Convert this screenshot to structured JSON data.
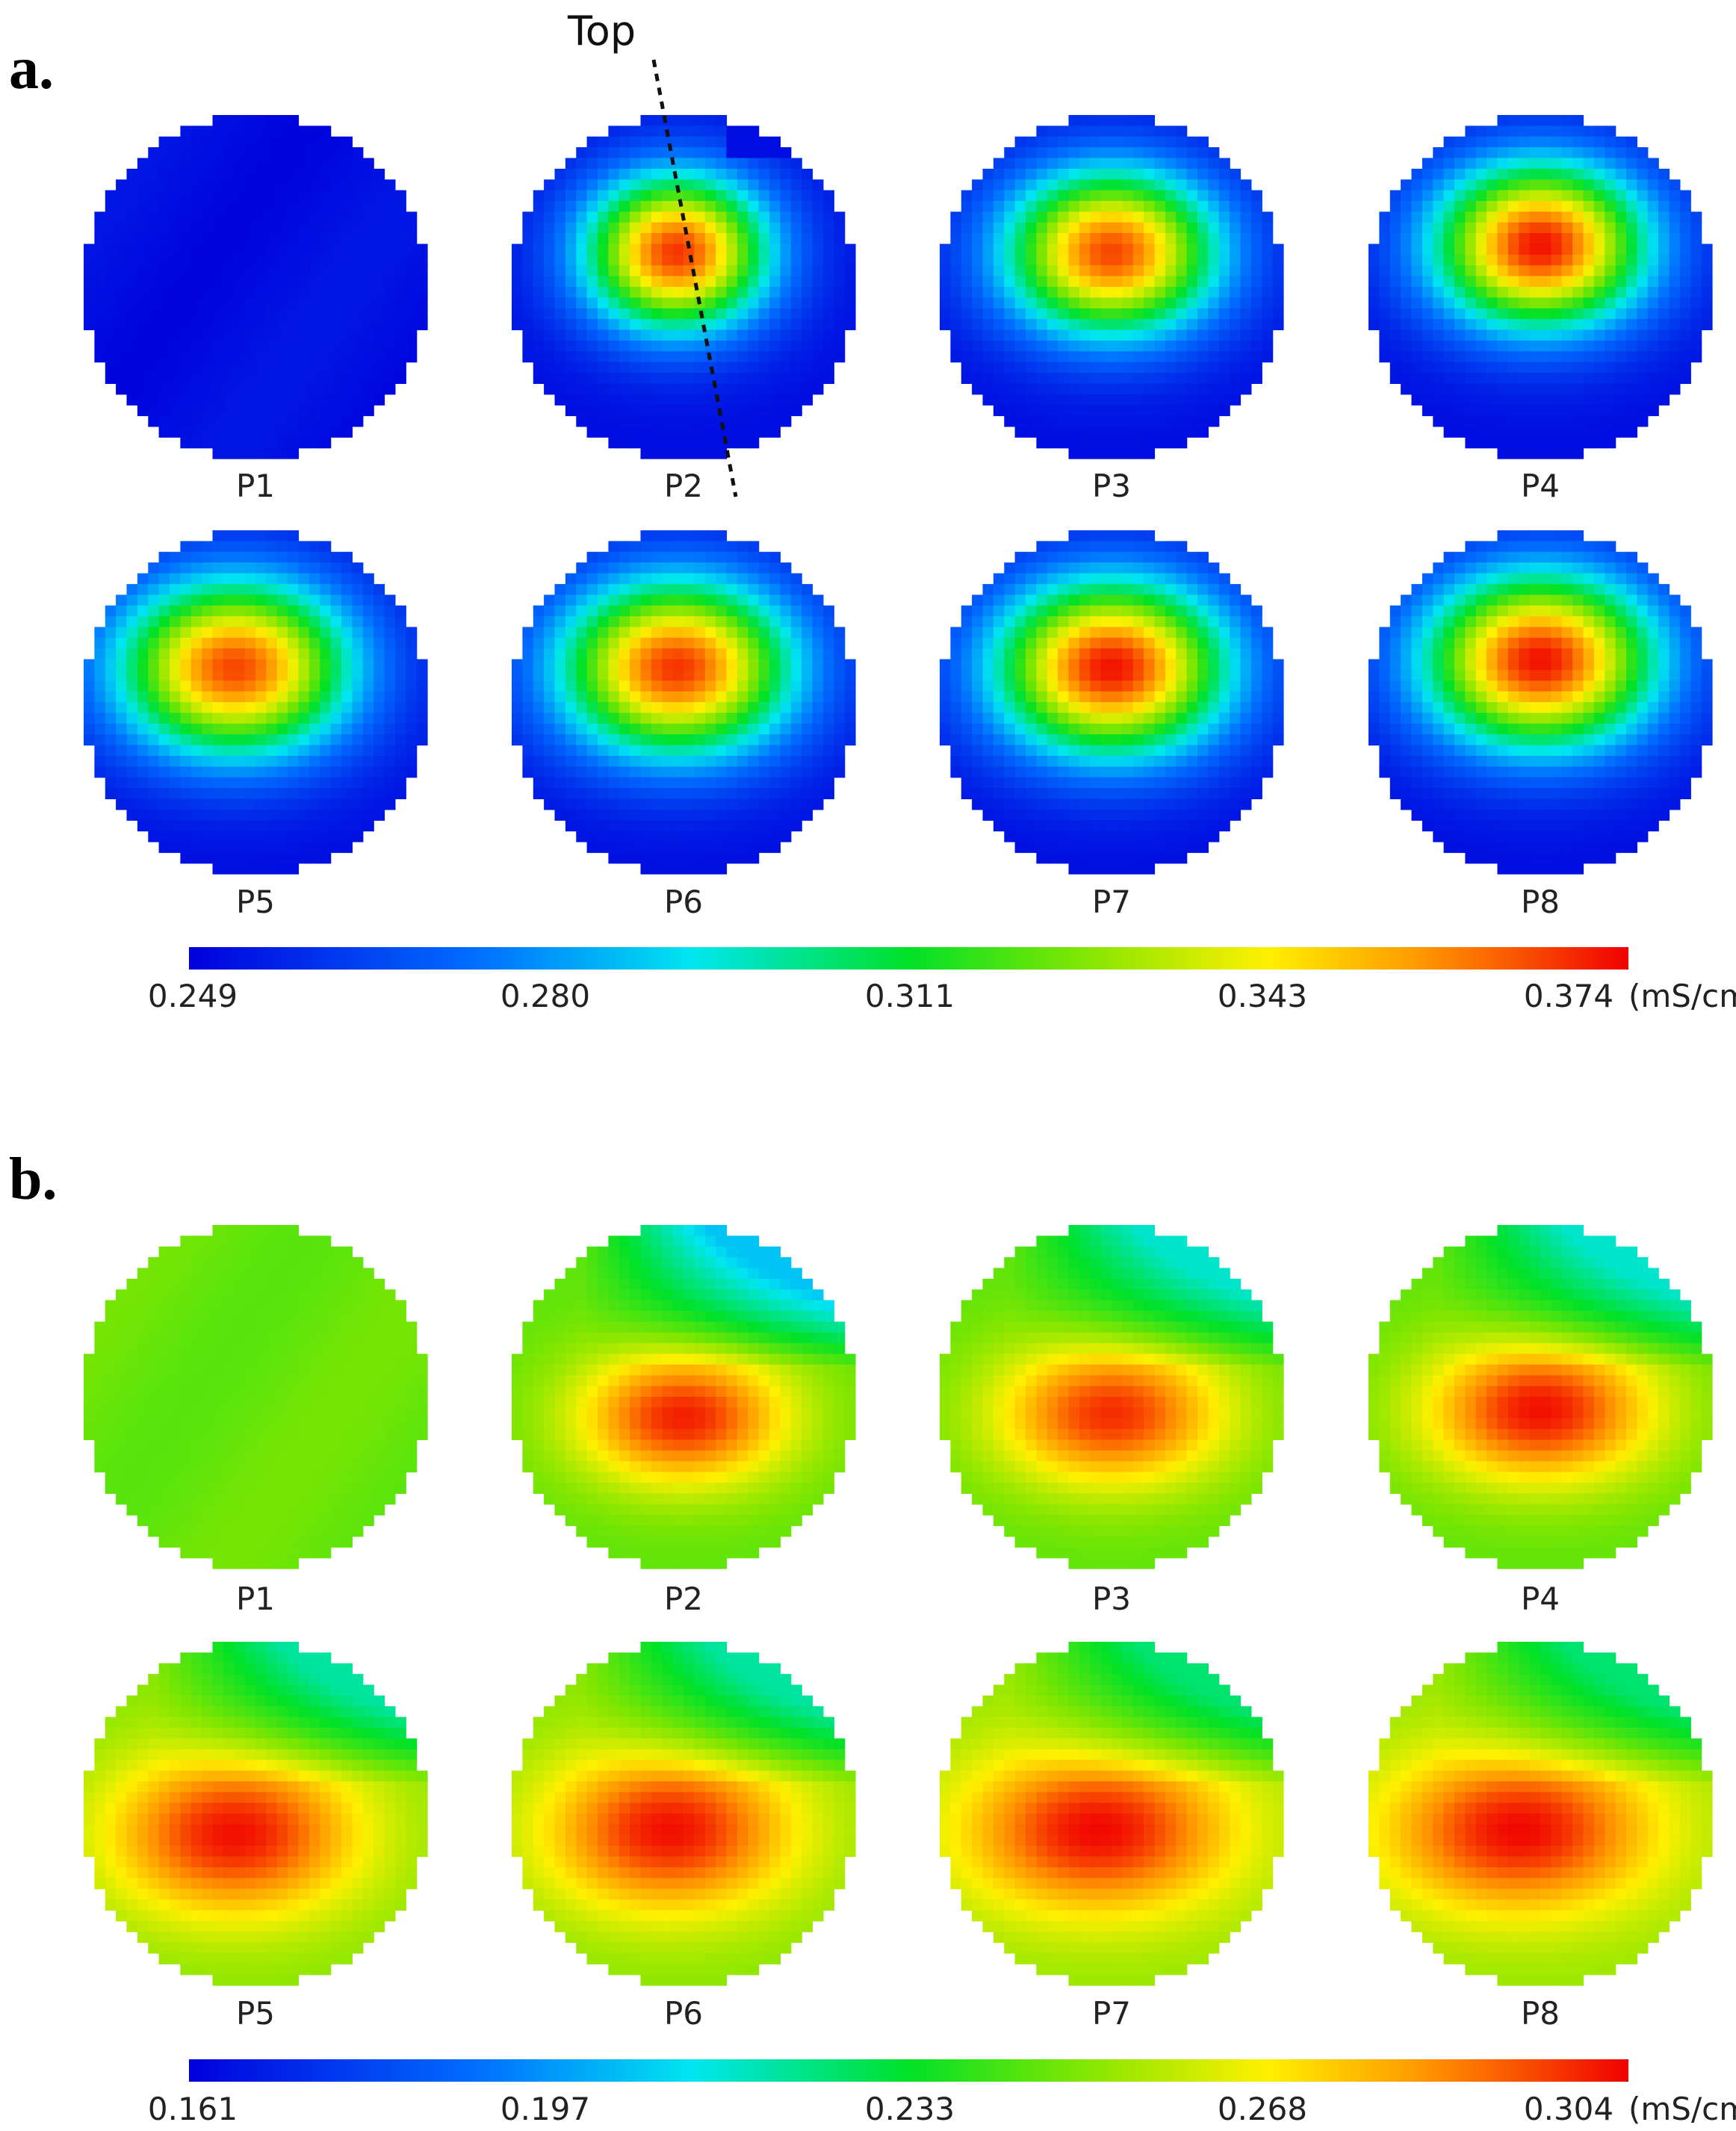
{
  "chart_data": [
    {
      "type": "heatmap",
      "panel_label": "a.",
      "annotation": "Top",
      "unit": "(mS/cm)",
      "colorbar": {
        "min": 0.249,
        "max": 0.374,
        "ticks": [
          "0.249",
          "0.280",
          "0.311",
          "0.343",
          "0.374"
        ]
      },
      "maps": [
        {
          "label": "P1",
          "uniform": 0.252
        },
        {
          "label": "P2",
          "peak": 0.368,
          "peak_pos": [
            0.48,
            0.4
          ],
          "spread": [
            0.19,
            0.16
          ],
          "base": 0.252,
          "notch_top_right": true
        },
        {
          "label": "P3",
          "peak": 0.366,
          "peak_pos": [
            0.5,
            0.4
          ],
          "spread": [
            0.22,
            0.17
          ],
          "base": 0.252
        },
        {
          "label": "P4",
          "peak": 0.372,
          "peak_pos": [
            0.5,
            0.38
          ],
          "spread": [
            0.22,
            0.17
          ],
          "base": 0.252
        },
        {
          "label": "P5",
          "peak": 0.366,
          "peak_pos": [
            0.44,
            0.4
          ],
          "spread": [
            0.24,
            0.18
          ],
          "base": 0.252
        },
        {
          "label": "P6",
          "peak": 0.368,
          "peak_pos": [
            0.48,
            0.4
          ],
          "spread": [
            0.24,
            0.18
          ],
          "base": 0.252
        },
        {
          "label": "P7",
          "peak": 0.372,
          "peak_pos": [
            0.5,
            0.4
          ],
          "spread": [
            0.24,
            0.18
          ],
          "base": 0.252
        },
        {
          "label": "P8",
          "peak": 0.372,
          "peak_pos": [
            0.5,
            0.38
          ],
          "spread": [
            0.24,
            0.18
          ],
          "base": 0.252
        }
      ]
    },
    {
      "type": "heatmap",
      "panel_label": "b.",
      "unit": "(mS/cm)",
      "colorbar": {
        "min": 0.161,
        "max": 0.304,
        "ticks": [
          "0.161",
          "0.197",
          "0.233",
          "0.268",
          "0.304"
        ]
      },
      "maps": [
        {
          "label": "P1",
          "uniform": 0.246
        },
        {
          "label": "P2",
          "peak": 0.3,
          "peak_pos": [
            0.5,
            0.56
          ],
          "spread": [
            0.22,
            0.14
          ],
          "base": 0.245,
          "top_low": 0.205
        },
        {
          "label": "P3",
          "peak": 0.298,
          "peak_pos": [
            0.5,
            0.55
          ],
          "spread": [
            0.24,
            0.15
          ],
          "base": 0.245,
          "top_low": 0.215
        },
        {
          "label": "P4",
          "peak": 0.302,
          "peak_pos": [
            0.5,
            0.54
          ],
          "spread": [
            0.24,
            0.15
          ],
          "base": 0.245,
          "top_low": 0.215
        },
        {
          "label": "P5",
          "peak": 0.302,
          "peak_pos": [
            0.44,
            0.56
          ],
          "spread": [
            0.26,
            0.17
          ],
          "base": 0.25,
          "top_low": 0.22
        },
        {
          "label": "P6",
          "peak": 0.302,
          "peak_pos": [
            0.46,
            0.55
          ],
          "spread": [
            0.26,
            0.17
          ],
          "base": 0.25,
          "top_low": 0.22
        },
        {
          "label": "P7",
          "peak": 0.303,
          "peak_pos": [
            0.46,
            0.55
          ],
          "spread": [
            0.28,
            0.17
          ],
          "base": 0.252,
          "top_low": 0.225
        },
        {
          "label": "P8",
          "peak": 0.303,
          "peak_pos": [
            0.44,
            0.55
          ],
          "spread": [
            0.28,
            0.17
          ],
          "base": 0.252,
          "top_low": 0.225
        }
      ]
    }
  ]
}
